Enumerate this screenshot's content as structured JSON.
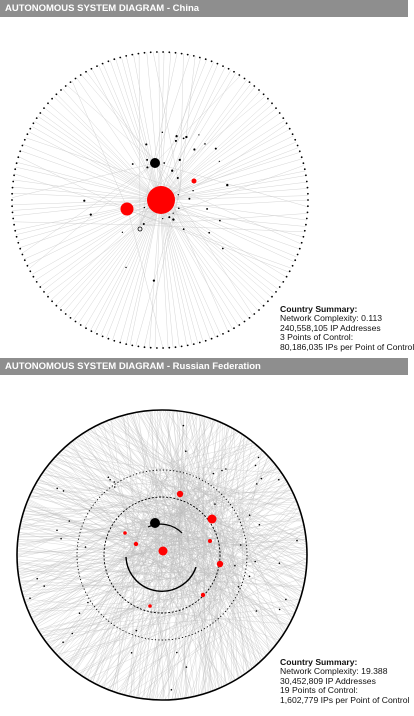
{
  "panels": [
    {
      "id": "china",
      "title": "AUTONOMOUS SYSTEM DIAGRAM - China",
      "summary": {
        "heading": "Country Summary:",
        "complexity": "Network Complexity: 0.113",
        "ip_addresses": "240,558,105 IP Addresses",
        "points_of_control": "3 Points of Control:",
        "ips_per_point": "80,186,035 IPs per Point of Control"
      }
    },
    {
      "id": "russia",
      "title": "AUTONOMOUS SYSTEM DIAGRAM - Russian Federation",
      "summary": {
        "heading": "Country Summary:",
        "complexity": "Network Complexity: 19.388",
        "ip_addresses": "30,452,809 IP Addresses",
        "points_of_control": "19 Points of Control:",
        "ips_per_point": "1,602,779 IPs per Point of Control"
      }
    }
  ],
  "colors": {
    "header_bg": "#8e8e8e",
    "header_text": "#ffffff",
    "control_point": "#ff0000",
    "node": "#000000",
    "edge": "#c8c8c8"
  }
}
